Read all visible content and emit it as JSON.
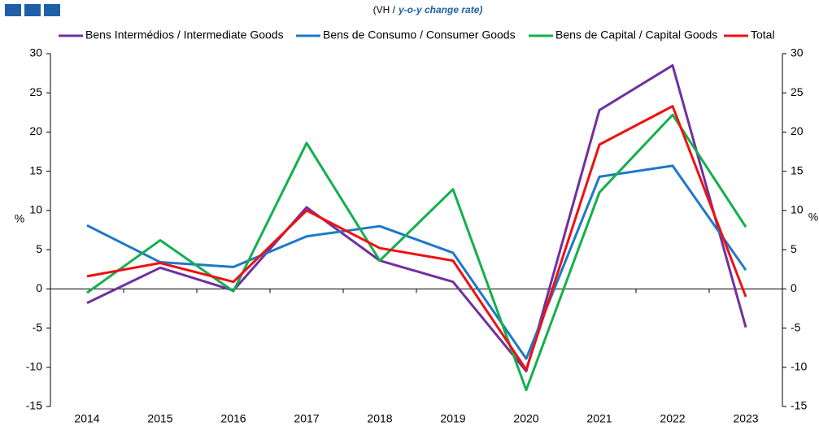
{
  "chart_data": {
    "type": "line",
    "subtitle_prefix": "(VH /",
    "subtitle_emphasis": "y-o-y change rate)",
    "ylabel": "%",
    "y2label": "%",
    "categories": [
      "2014",
      "2015",
      "2016",
      "2017",
      "2018",
      "2019",
      "2020",
      "2021",
      "2022",
      "2023"
    ],
    "series": [
      {
        "name": "Bens Intermédios / Intermediate Goods",
        "color": "#7030a0",
        "values": [
          -1.8,
          2.7,
          -0.2,
          10.4,
          3.6,
          0.9,
          -10.5,
          22.8,
          28.5,
          -4.9
        ]
      },
      {
        "name": "Bens de Consumo / Consumer Goods",
        "color": "#1f78c8",
        "values": [
          8.1,
          3.4,
          2.8,
          6.7,
          8.0,
          4.6,
          -8.9,
          14.3,
          15.7,
          2.4
        ]
      },
      {
        "name": "Bens de Capital / Capital Goods",
        "color": "#13b04c",
        "values": [
          -0.5,
          6.2,
          -0.3,
          18.6,
          3.6,
          12.7,
          -12.9,
          12.3,
          22.2,
          7.9
        ]
      },
      {
        "name": "Total",
        "color": "#ee1111",
        "values": [
          1.6,
          3.3,
          0.9,
          10.0,
          5.2,
          3.6,
          -10.3,
          18.4,
          23.3,
          -1.0
        ]
      }
    ],
    "ylim": [
      -15,
      30
    ],
    "yticks": [
      -15,
      -10,
      -5,
      0,
      5,
      10,
      15,
      20,
      25,
      30
    ],
    "y2lim": [
      -15,
      30
    ],
    "y2ticks": [
      -15,
      -10,
      -5,
      0,
      5,
      10,
      15,
      20,
      25,
      30
    ],
    "legend": "top"
  }
}
